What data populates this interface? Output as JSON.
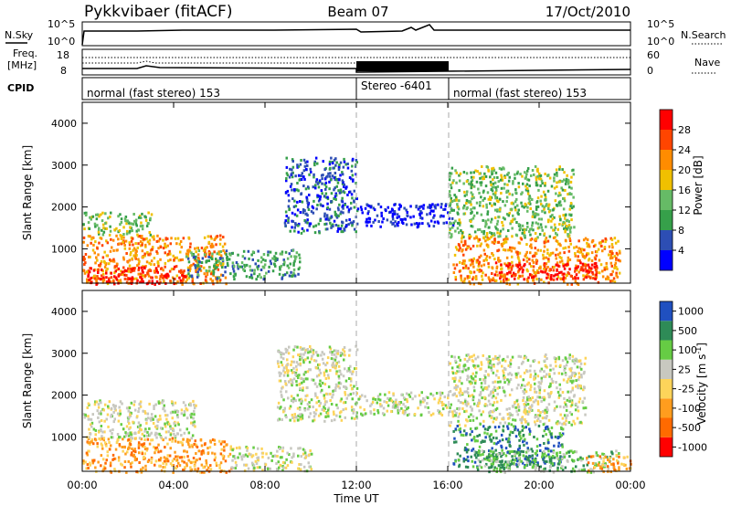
{
  "header": {
    "station": "Pykkvibaer (fitACF)",
    "beam": "Beam 07",
    "date": "17/Oct/2010"
  },
  "strip_panels": {
    "nsky": {
      "label": "N.Sky",
      "left_ticks": [
        "10^5",
        "10^0"
      ],
      "right_ticks": [
        "10^5",
        "10^0"
      ],
      "right_label": "N.Search"
    },
    "freq": {
      "label_line1": "Freq.",
      "label_line2": "[MHz]",
      "left_ticks": [
        "18",
        "8"
      ],
      "right_ticks": [
        "60",
        "0"
      ],
      "right_label": "Nave"
    },
    "cpid": {
      "label": "CPID",
      "segments": [
        {
          "start": 0,
          "end": 12,
          "text": "normal (fast stereo) 153"
        },
        {
          "start": 12,
          "end": 16,
          "text": "Stereo -6401"
        },
        {
          "start": 16,
          "end": 24,
          "text": "normal (fast stereo) 153"
        }
      ]
    }
  },
  "colors": {
    "power": [
      "#0000ff",
      "#2d4eb4",
      "#36a04a",
      "#66bb66",
      "#f0c000",
      "#ff8c00",
      "#ff4500",
      "#ff0000"
    ],
    "velocity": [
      "#ff0000",
      "#ff6a00",
      "#ff9d1e",
      "#fdd45a",
      "#c8c8c0",
      "#66cc44",
      "#2e8b57",
      "#2050c0"
    ]
  },
  "chart_data": [
    {
      "type": "heatmap",
      "ylabel": "Slant Range [km]",
      "yticks": [
        "4000",
        "3000",
        "2000",
        "1000"
      ],
      "ylim": [
        180,
        4500
      ],
      "xlim": [
        0,
        24
      ],
      "colorbar": {
        "label": "Power [dB]",
        "ticks": [
          "28",
          "24",
          "20",
          "16",
          "12",
          "8",
          "4"
        ]
      },
      "regions": [
        {
          "t0": 0.0,
          "t1": 6.3,
          "r0": 180,
          "r1": 1350,
          "level": 5
        },
        {
          "t0": 0.2,
          "t1": 4.5,
          "r0": 180,
          "r1": 600,
          "level": 7
        },
        {
          "t0": 0.0,
          "t1": 3.0,
          "r0": 1350,
          "r1": 1900,
          "level": 3
        },
        {
          "t0": 4.5,
          "t1": 9.5,
          "r0": 300,
          "r1": 1000,
          "level": 2
        },
        {
          "t0": 8.8,
          "t1": 12.0,
          "r0": 1400,
          "r1": 3200,
          "level": 1
        },
        {
          "t0": 12.0,
          "t1": 16.2,
          "r0": 1550,
          "r1": 2100,
          "level": 0
        },
        {
          "t0": 16.0,
          "t1": 21.5,
          "r0": 1300,
          "r1": 3000,
          "level": 3
        },
        {
          "t0": 16.2,
          "t1": 23.5,
          "r0": 180,
          "r1": 1300,
          "level": 5
        },
        {
          "t0": 18.0,
          "t1": 22.5,
          "r0": 300,
          "r1": 700,
          "level": 7
        }
      ]
    },
    {
      "type": "heatmap",
      "ylabel": "Slant Range [km]",
      "xlabel": "Time UT",
      "xticks": [
        "00:00",
        "04:00",
        "08:00",
        "12:00",
        "16:00",
        "20:00",
        "00:00"
      ],
      "yticks": [
        "4000",
        "3000",
        "2000",
        "1000"
      ],
      "ylim": [
        180,
        4500
      ],
      "xlim": [
        0,
        24
      ],
      "colorbar": {
        "label": "Velocity [m s-1]",
        "label_main": "Velocity [m s",
        "label_sup": "-1",
        "label_tail": "]",
        "ticks": [
          "1000",
          "500",
          "100",
          "25",
          "-25",
          "-100",
          "-500",
          "-1000"
        ]
      },
      "regions": [
        {
          "t0": 0.0,
          "t1": 6.5,
          "r0": 180,
          "r1": 1000,
          "level": 2
        },
        {
          "t0": 0.0,
          "t1": 5.0,
          "r0": 1000,
          "r1": 1900,
          "level": 4
        },
        {
          "t0": 6.5,
          "t1": 10.0,
          "r0": 200,
          "r1": 800,
          "level": 4
        },
        {
          "t0": 8.5,
          "t1": 12.0,
          "r0": 1400,
          "r1": 3200,
          "level": 4
        },
        {
          "t0": 12.0,
          "t1": 16.0,
          "r0": 1550,
          "r1": 2100,
          "level": 4
        },
        {
          "t0": 16.0,
          "t1": 22.0,
          "r0": 1300,
          "r1": 3000,
          "level": 4
        },
        {
          "t0": 16.2,
          "t1": 21.0,
          "r0": 300,
          "r1": 1300,
          "level": 6
        },
        {
          "t0": 17.0,
          "t1": 23.5,
          "r0": 180,
          "r1": 700,
          "level": 5
        },
        {
          "t0": 22.0,
          "t1": 24.0,
          "r0": 180,
          "r1": 600,
          "level": 2
        }
      ]
    }
  ]
}
